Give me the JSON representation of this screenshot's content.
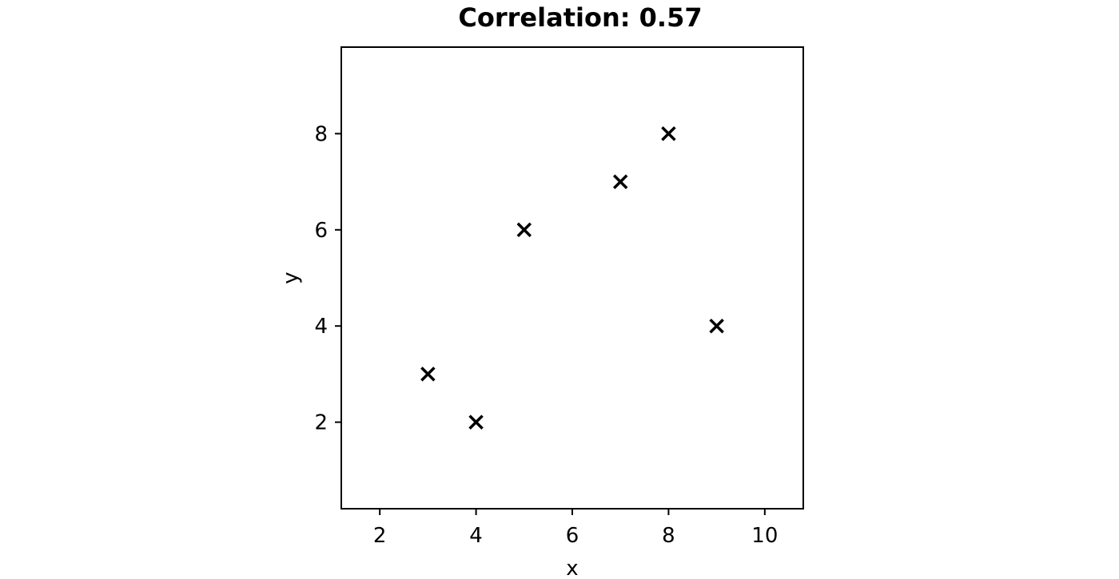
{
  "chart_data": {
    "type": "scatter",
    "title": "Correlation: 0.57",
    "xlabel": "x",
    "ylabel": "y",
    "xlim": [
      1.2,
      10.8
    ],
    "ylim": [
      0.2,
      9.8
    ],
    "xticks": [
      2,
      4,
      6,
      8,
      10
    ],
    "yticks": [
      2,
      4,
      6,
      8
    ],
    "grid": false,
    "marker": "x",
    "marker_color": "#000000",
    "points": [
      {
        "x": 3,
        "y": 3
      },
      {
        "x": 4,
        "y": 2
      },
      {
        "x": 5,
        "y": 6
      },
      {
        "x": 7,
        "y": 7
      },
      {
        "x": 8,
        "y": 8
      },
      {
        "x": 9,
        "y": 4
      }
    ]
  }
}
